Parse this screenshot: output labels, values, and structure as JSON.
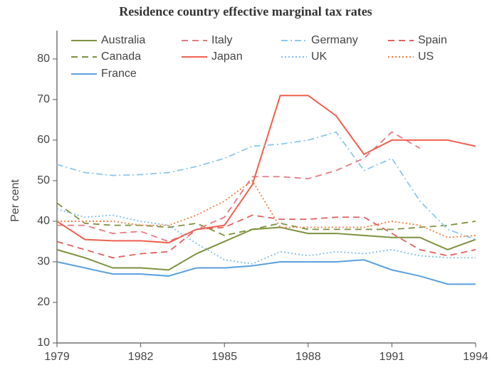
{
  "chart_data": {
    "type": "line",
    "title": "Residence country effective marginal tax rates",
    "y_label": "Per cent",
    "x": [
      1979,
      1980,
      1981,
      1982,
      1983,
      1984,
      1985,
      1986,
      1987,
      1988,
      1989,
      1990,
      1991,
      1992,
      1993,
      1994
    ],
    "xlim": [
      1979,
      1994
    ],
    "xticks": [
      1979,
      1982,
      1985,
      1988,
      1991,
      1994
    ],
    "ylim": [
      10,
      87
    ],
    "yticks": [
      10,
      20,
      30,
      40,
      50,
      60,
      70,
      80
    ],
    "series": [
      {
        "name": "Australia",
        "color": "#7d9140",
        "style": "solid",
        "values": [
          33,
          31,
          28.5,
          28.5,
          28,
          32,
          35,
          38,
          38.5,
          37,
          37,
          36.5,
          36,
          36,
          33,
          35.5
        ]
      },
      {
        "name": "Canada",
        "color": "#7d9140",
        "style": "dashed",
        "values": [
          44.5,
          39.5,
          39,
          39,
          38.5,
          39.5,
          36.5,
          38,
          39.5,
          38,
          38,
          38,
          38,
          38.5,
          39,
          40
        ]
      },
      {
        "name": "France",
        "color": "#5aa0e0",
        "style": "solid",
        "values": [
          30,
          28.5,
          27,
          27,
          26.5,
          28.5,
          28.5,
          29,
          30,
          30,
          30,
          30.5,
          28,
          26.5,
          24.5,
          24.5
        ]
      },
      {
        "name": "Italy",
        "color": "#e87a82",
        "style": "dashed",
        "values": [
          39,
          39,
          37,
          37.5,
          35,
          38,
          41,
          51,
          51,
          50.5,
          52.5,
          55.5,
          62,
          58,
          null,
          null
        ]
      },
      {
        "name": "Japan",
        "color": "#f06050",
        "style": "solid",
        "values": [
          40,
          35.5,
          35.2,
          35.2,
          34.7,
          38,
          39,
          49,
          71,
          71,
          66,
          56.5,
          60,
          60,
          60,
          58.5
        ]
      },
      {
        "name": "Germany",
        "color": "#8ec8e8",
        "style": "dashdot",
        "values": [
          54,
          52,
          51.3,
          51.5,
          52,
          53.5,
          55.5,
          58.5,
          59,
          60,
          62,
          52.5,
          55.5,
          45,
          38,
          35.5
        ]
      },
      {
        "name": "UK",
        "color": "#7fc0e8",
        "style": "dotted",
        "values": [
          43,
          41,
          41.5,
          40,
          39,
          34.5,
          30.5,
          29.5,
          32.5,
          31.5,
          32.5,
          32,
          33,
          31.5,
          31,
          31
        ]
      },
      {
        "name": "Spain",
        "color": "#e06060",
        "style": "dashed",
        "values": [
          35,
          33,
          31,
          32,
          32.5,
          38,
          38.5,
          41.5,
          40.5,
          40.5,
          41,
          41,
          37,
          33,
          31.5,
          33
        ]
      },
      {
        "name": "US",
        "color": "#f08040",
        "style": "dotted",
        "values": [
          40,
          40,
          40,
          39,
          39,
          41.5,
          45,
          50,
          38.5,
          38.5,
          38.5,
          38.5,
          40,
          39,
          36,
          36.5
        ]
      }
    ]
  }
}
